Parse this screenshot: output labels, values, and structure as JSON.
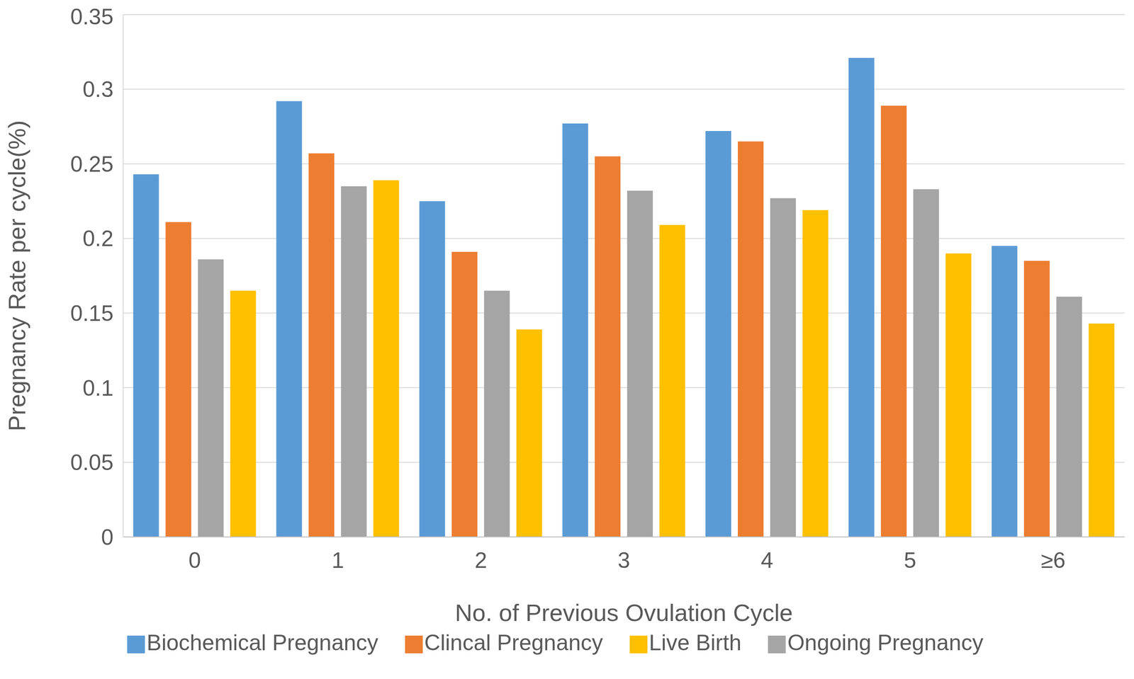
{
  "chart_data": {
    "type": "bar",
    "x_label": "No. of Previous Ovulation Cycle",
    "y_label": "Pregnancy Rate per cycle(%)",
    "categories": [
      "0",
      "1",
      "2",
      "3",
      "4",
      "5",
      "≥6"
    ],
    "series": [
      {
        "name": "Biochemical Pregnancy",
        "color": "#5B9BD5",
        "values": [
          0.243,
          0.292,
          0.225,
          0.277,
          0.272,
          0.321,
          0.195
        ]
      },
      {
        "name": "Clincal Pregnancy",
        "color": "#ED7D31",
        "values": [
          0.211,
          0.257,
          0.191,
          0.255,
          0.265,
          0.289,
          0.185
        ]
      },
      {
        "name": "Ongoing Pregnancy",
        "color": "#A5A5A5",
        "values": [
          0.186,
          0.235,
          0.165,
          0.232,
          0.227,
          0.233,
          0.161
        ]
      },
      {
        "name": "Live Birth",
        "color": "#FFC000",
        "values": [
          0.165,
          0.239,
          0.139,
          0.209,
          0.219,
          0.19,
          0.143
        ]
      }
    ],
    "ylim": [
      0,
      0.35
    ],
    "yticks": [
      0,
      0.05,
      0.1,
      0.15,
      0.2,
      0.25,
      0.3,
      0.35
    ],
    "grid": true,
    "legend": "bottom"
  }
}
